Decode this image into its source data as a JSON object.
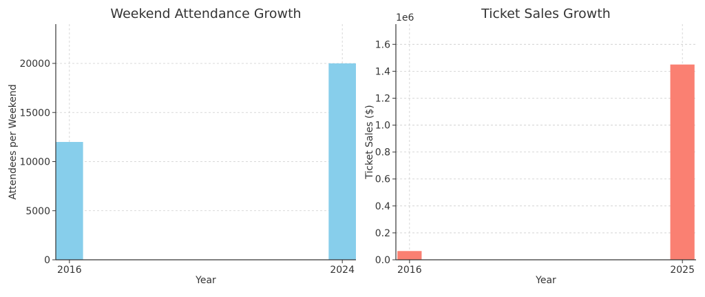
{
  "chart_data": [
    {
      "type": "bar",
      "title": "Weekend Attendance Growth",
      "xlabel": "Year",
      "ylabel": "Attendees per Weekend",
      "categories": [
        "2016",
        "2024"
      ],
      "x": [
        2016,
        2024
      ],
      "values": [
        12000,
        20000
      ],
      "xlim": [
        2015.6,
        2024.4
      ],
      "ylim": [
        0,
        24000
      ],
      "yticks": [
        0,
        5000,
        10000,
        15000,
        20000
      ],
      "ytick_labels": [
        "0",
        "5000",
        "10000",
        "15000",
        "20000"
      ],
      "color": "#87ceeb",
      "grid": true
    },
    {
      "type": "bar",
      "title": "Ticket Sales Growth",
      "xlabel": "Year",
      "ylabel": "Ticket Sales ($)",
      "offset_label": "1e6",
      "categories": [
        "2016",
        "2025"
      ],
      "x": [
        2016,
        2025
      ],
      "values": [
        65000,
        1450000
      ],
      "xlim": [
        2015.55,
        2025.45
      ],
      "ylim": [
        0,
        1750000
      ],
      "yticks": [
        0,
        200000,
        400000,
        600000,
        800000,
        1000000,
        1200000,
        1400000,
        1600000
      ],
      "ytick_labels": [
        "0.0",
        "0.2",
        "0.4",
        "0.6",
        "0.8",
        "1.0",
        "1.2",
        "1.4",
        "1.6"
      ],
      "color": "#fa8072",
      "grid": true
    }
  ]
}
